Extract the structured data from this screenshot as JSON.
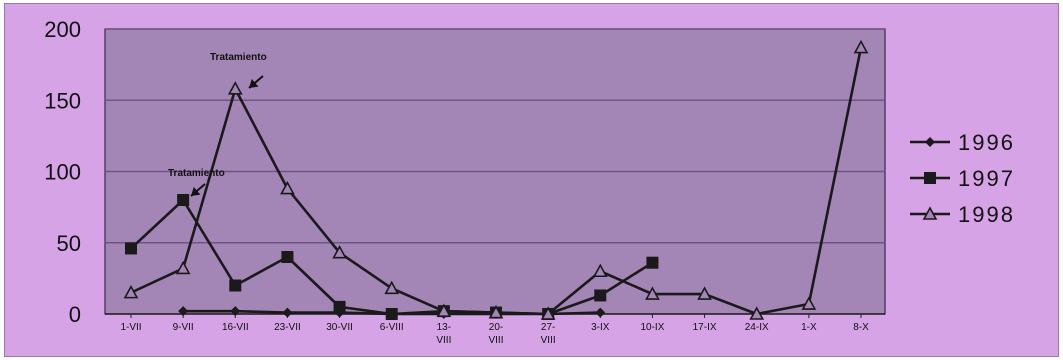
{
  "chart_data": {
    "type": "line",
    "title": "",
    "xlabel": "",
    "ylabel": "",
    "ylim": [
      0,
      200
    ],
    "yticks": [
      0,
      50,
      100,
      150,
      200
    ],
    "grid": true,
    "legend_position": "right",
    "categories": [
      [
        "1-VII"
      ],
      [
        "9-VII"
      ],
      [
        "16-VII"
      ],
      [
        "23-VII"
      ],
      [
        "30-VII"
      ],
      [
        "6-VIII"
      ],
      [
        "13-",
        "VIII"
      ],
      [
        "20-",
        "VIII"
      ],
      [
        "27-",
        "VIII"
      ],
      [
        "3-IX"
      ],
      [
        "10-IX"
      ],
      [
        "17-IX"
      ],
      [
        "24-IX"
      ],
      [
        "1-X"
      ],
      [
        "8-X"
      ]
    ],
    "series": [
      {
        "name": "1996",
        "marker": "diamond",
        "values": [
          null,
          2,
          2,
          1,
          1,
          0,
          0,
          0,
          0,
          1,
          null,
          null,
          null,
          null,
          null
        ]
      },
      {
        "name": "1997",
        "marker": "square",
        "values": [
          46,
          80,
          20,
          40,
          5,
          0,
          2,
          1,
          0,
          13,
          36,
          null,
          null,
          null,
          null
        ]
      },
      {
        "name": "1998",
        "marker": "triangle",
        "values": [
          15,
          32,
          158,
          88,
          43,
          18,
          2,
          1,
          0,
          30,
          14,
          14,
          0,
          7,
          187
        ]
      }
    ],
    "annotations": [
      {
        "text": "Tratamiento",
        "category_index": 2,
        "value": 158
      },
      {
        "text": "Tratamiento",
        "category_index": 1,
        "value": 80
      }
    ],
    "colors": {
      "figure_bg": "#d6a3e6",
      "plot_bg": "#a385b6",
      "grid": "#6e5684",
      "line": "#1a1a1a"
    }
  }
}
